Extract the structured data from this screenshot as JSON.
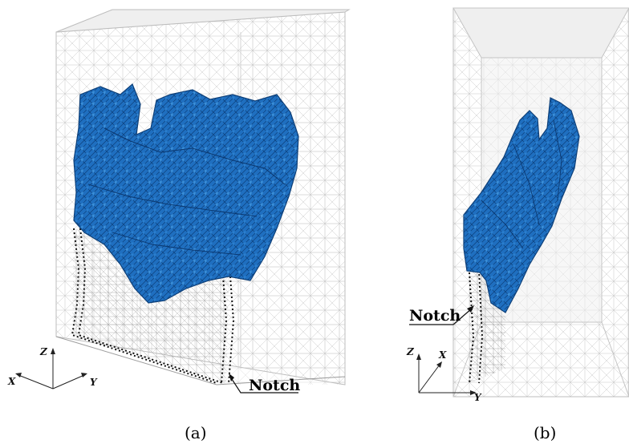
{
  "panels": [
    {
      "caption": "(a)",
      "axes": {
        "z": "Z",
        "x": "X",
        "y": "Y"
      },
      "notch_label": "Notch"
    },
    {
      "caption": "(b)",
      "axes": {
        "z": "Z",
        "x": "X",
        "y": "Y"
      },
      "notch_label": "Notch"
    }
  ],
  "colors": {
    "crack": "#1f6fc0",
    "crack_dark": "#0f4d92",
    "crack_light": "#3b8fd8",
    "mesh": "#b9b9b9",
    "notch_outline": "#111111"
  }
}
